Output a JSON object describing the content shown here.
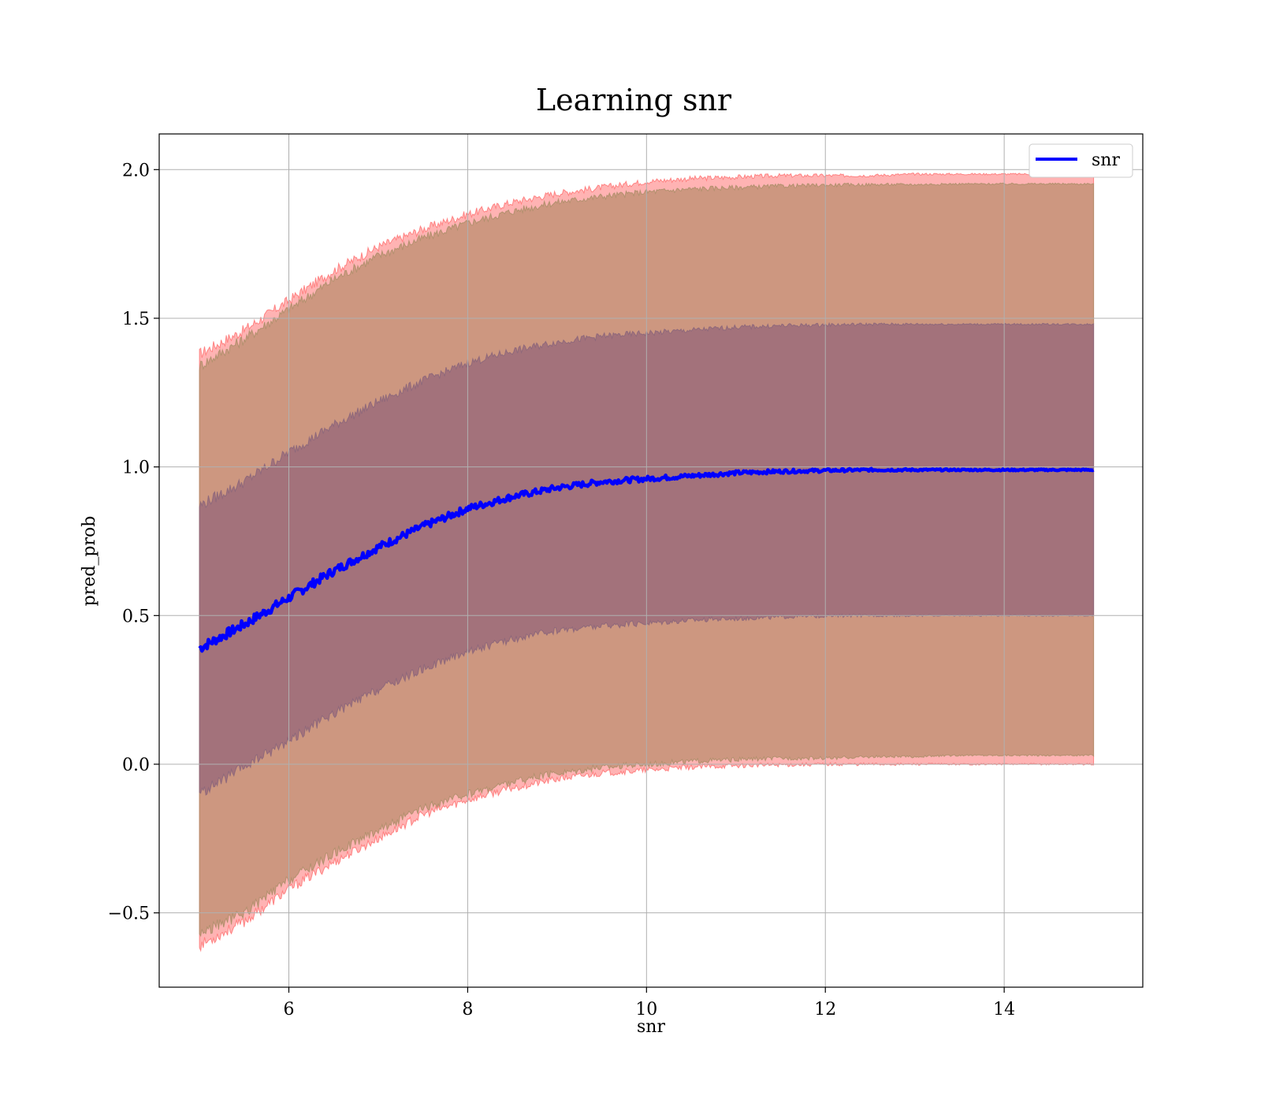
{
  "chart_data": {
    "type": "line",
    "title": "Learning snr",
    "xlabel": "snr",
    "ylabel": "pred_prob",
    "xlim": [
      4.55,
      15.55
    ],
    "ylim": [
      -0.75,
      2.12
    ],
    "x_ticks": [
      6,
      8,
      10,
      12,
      14
    ],
    "x_tick_labels": [
      "6",
      "8",
      "10",
      "12",
      "14"
    ],
    "y_ticks": [
      -0.5,
      0.0,
      0.5,
      1.0,
      1.5,
      2.0
    ],
    "y_tick_labels": [
      "−0.5",
      "0.0",
      "0.5",
      "1.0",
      "1.5",
      "2.0"
    ],
    "grid": true,
    "legend": {
      "position": "top-right",
      "entries": [
        "snr"
      ]
    },
    "colors": {
      "line": "#0000ff",
      "outer_band": "#ff8080",
      "middle_band": "#c8947a",
      "inner_band": "#a0707a"
    },
    "x": [
      5.0,
      5.5,
      6.0,
      6.5,
      7.0,
      7.5,
      8.0,
      8.5,
      9.0,
      9.5,
      10.0,
      10.5,
      11.0,
      11.5,
      12.0,
      12.5,
      13.0,
      13.5,
      14.0,
      14.5,
      15.0
    ],
    "series": [
      {
        "name": "snr",
        "values": [
          0.39,
          0.47,
          0.56,
          0.65,
          0.73,
          0.8,
          0.86,
          0.9,
          0.93,
          0.95,
          0.96,
          0.97,
          0.98,
          0.985,
          0.988,
          0.99,
          0.99,
          0.99,
          0.99,
          0.99,
          0.99
        ]
      }
    ],
    "bands": [
      {
        "level": "outer",
        "lower": [
          -0.61,
          -0.53,
          -0.42,
          -0.33,
          -0.25,
          -0.17,
          -0.12,
          -0.08,
          -0.05,
          -0.03,
          -0.02,
          -0.01,
          -0.005,
          -0.002,
          0.0,
          0.0,
          0.0,
          0.0,
          0.0,
          0.0,
          0.0
        ],
        "upper": [
          1.38,
          1.46,
          1.56,
          1.66,
          1.74,
          1.8,
          1.85,
          1.89,
          1.92,
          1.94,
          1.96,
          1.97,
          1.975,
          1.98,
          1.98,
          1.98,
          1.985,
          1.985,
          1.985,
          1.985,
          1.985
        ]
      },
      {
        "level": "middle",
        "lower": [
          -0.57,
          -0.5,
          -0.39,
          -0.3,
          -0.22,
          -0.15,
          -0.1,
          -0.06,
          -0.03,
          -0.01,
          0.0,
          0.01,
          0.015,
          0.02,
          0.02,
          0.025,
          0.025,
          0.03,
          0.03,
          0.03,
          0.03
        ],
        "upper": [
          1.34,
          1.43,
          1.53,
          1.63,
          1.71,
          1.77,
          1.82,
          1.86,
          1.89,
          1.91,
          1.925,
          1.935,
          1.94,
          1.945,
          1.948,
          1.95,
          1.95,
          1.952,
          1.952,
          1.952,
          1.952
        ]
      },
      {
        "level": "inner",
        "lower": [
          -0.1,
          -0.01,
          0.08,
          0.17,
          0.25,
          0.32,
          0.38,
          0.42,
          0.45,
          0.465,
          0.475,
          0.485,
          0.49,
          0.495,
          0.498,
          0.5,
          0.5,
          0.5,
          0.5,
          0.5,
          0.5
        ],
        "upper": [
          0.87,
          0.95,
          1.05,
          1.14,
          1.22,
          1.29,
          1.35,
          1.39,
          1.42,
          1.44,
          1.45,
          1.46,
          1.47,
          1.475,
          1.478,
          1.48,
          1.48,
          1.48,
          1.48,
          1.48,
          1.48
        ]
      }
    ]
  }
}
